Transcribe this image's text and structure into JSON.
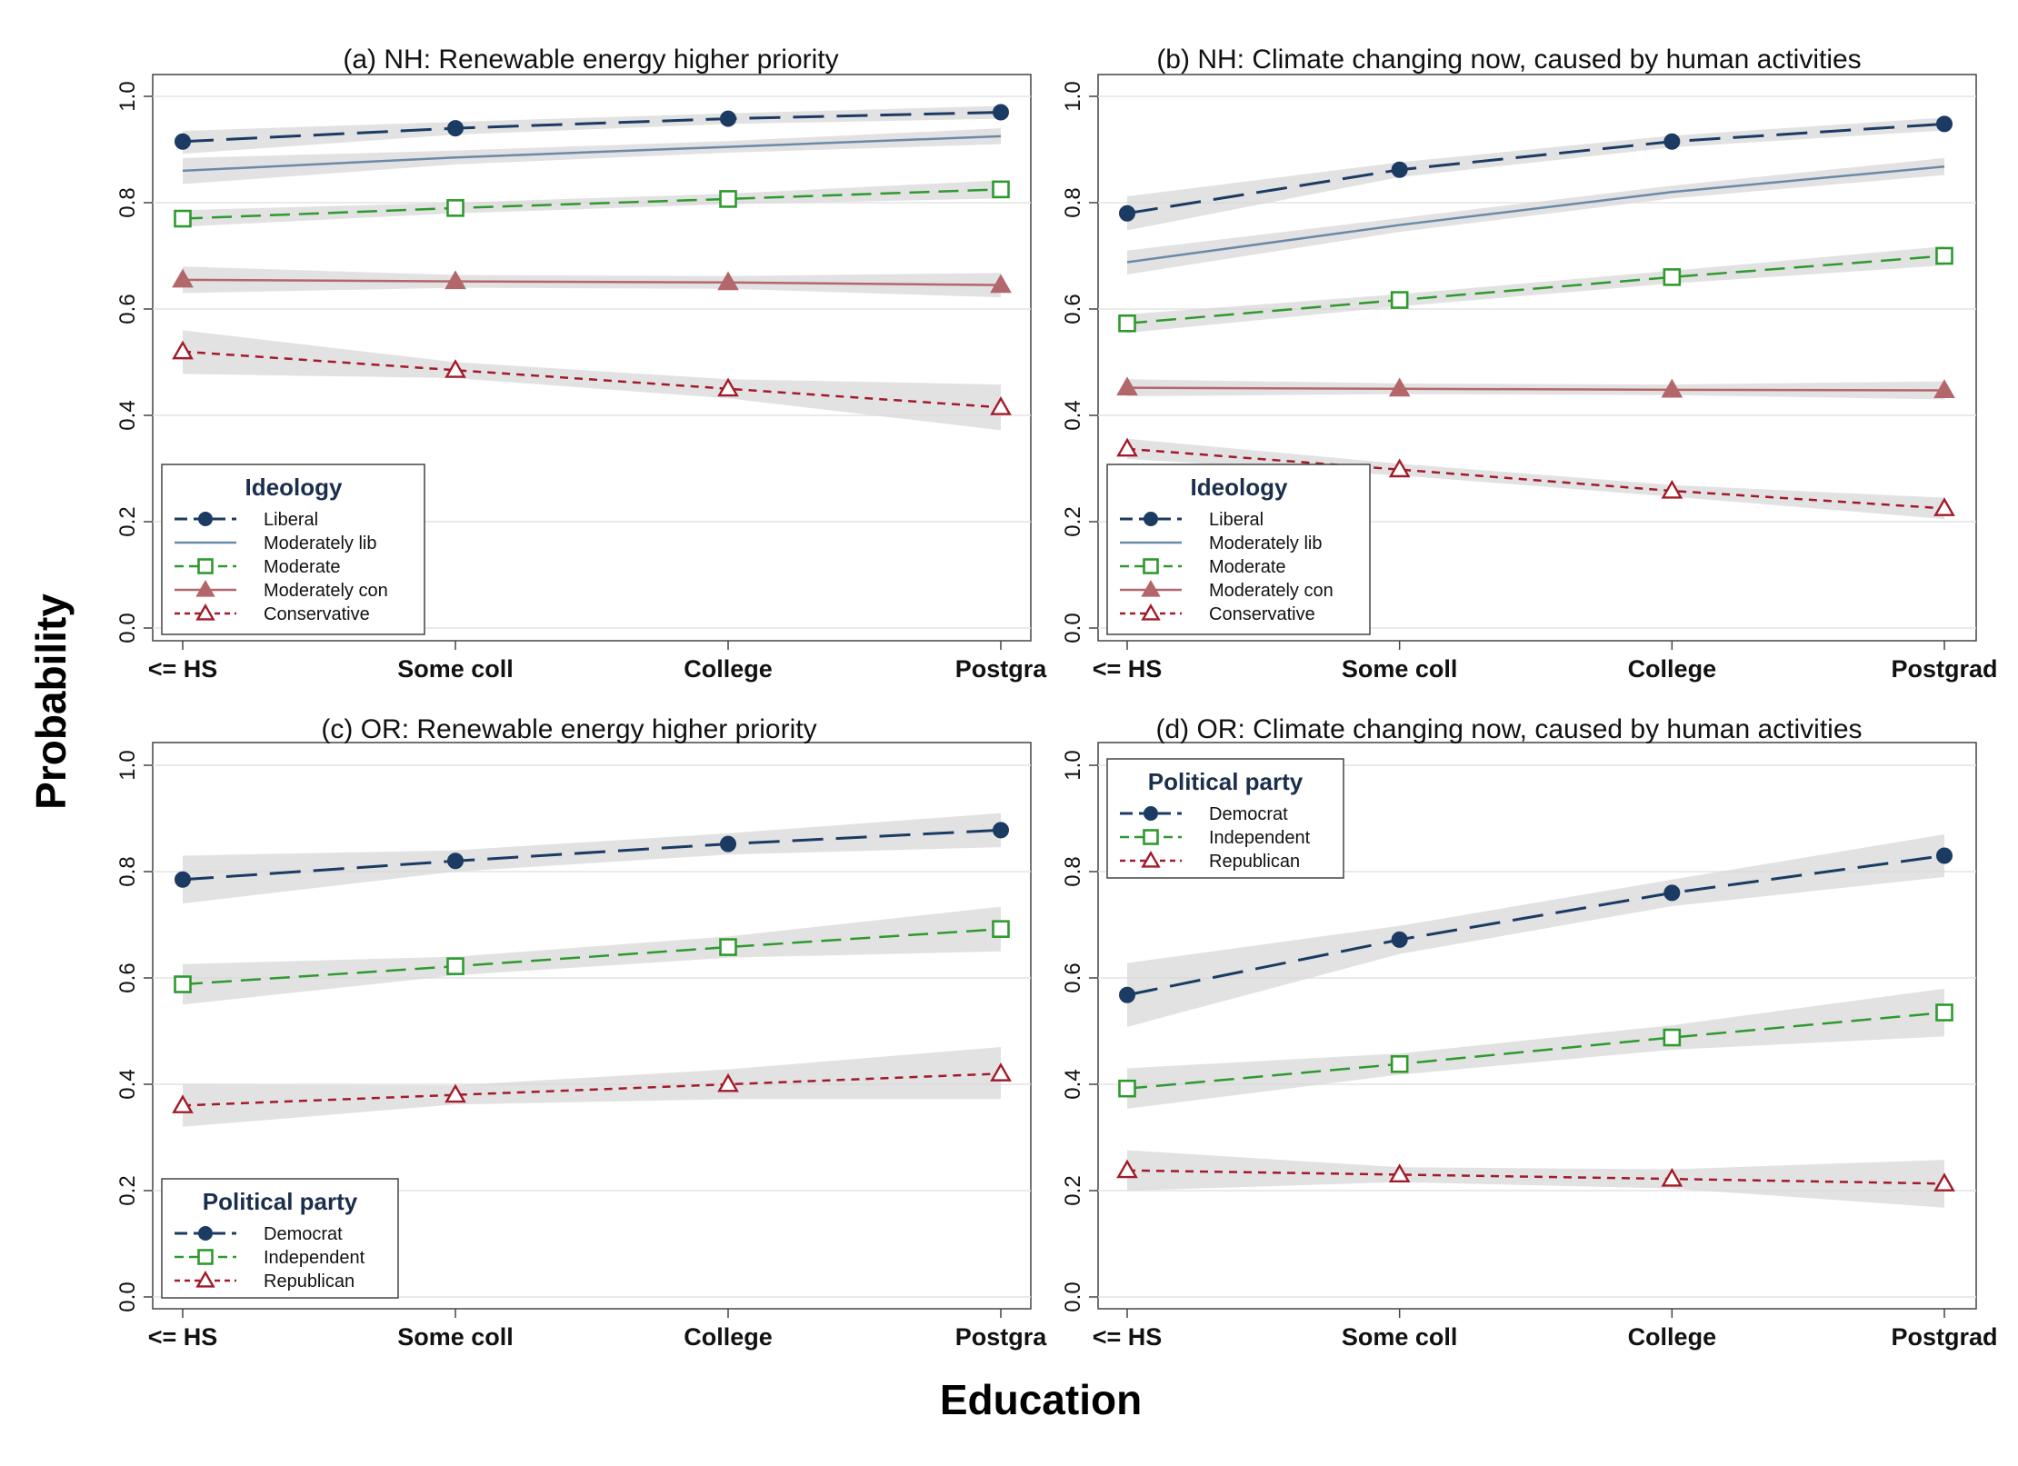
{
  "figure": {
    "ylabel": "Probability",
    "xlabel": "Education"
  },
  "colors": {
    "liberal": "#1b3b63",
    "mod_lib": "#6a8aa8",
    "moderate": "#2e9a2e",
    "mod_con": "#b3676b",
    "conservative": "#a31b2b",
    "band": "#d6d6d6",
    "grid": "#e4e4e4",
    "axis": "#444444"
  },
  "chart_data": [
    {
      "type": "line",
      "title": "(a)  NH:  Renewable energy higher priority",
      "categories": [
        "<= HS",
        "Some coll",
        "College",
        "Postgra"
      ],
      "ylim": [
        0,
        1
      ],
      "yticks": [
        "0.0",
        "0.2",
        "0.4",
        "0.6",
        "0.8",
        "1.0"
      ],
      "grid": true,
      "legend": {
        "title": "Ideology",
        "placement": "bottom-left",
        "entries": [
          "Liberal",
          "Moderately lib",
          "Moderate",
          "Moderately con",
          "Conservative"
        ]
      },
      "series": [
        {
          "name": "Liberal",
          "values": [
            0.915,
            0.94,
            0.958,
            0.97
          ],
          "lower": [
            0.892,
            0.928,
            0.948,
            0.958
          ],
          "upper": [
            0.935,
            0.952,
            0.968,
            0.982
          ],
          "style": "liberal"
        },
        {
          "name": "Moderately lib",
          "values": [
            0.86,
            0.885,
            0.905,
            0.925
          ],
          "lower": [
            0.835,
            0.872,
            0.894,
            0.91
          ],
          "upper": [
            0.884,
            0.898,
            0.916,
            0.94
          ],
          "style": "mod_lib"
        },
        {
          "name": "Moderate",
          "values": [
            0.77,
            0.79,
            0.807,
            0.825
          ],
          "lower": [
            0.755,
            0.78,
            0.797,
            0.808
          ],
          "upper": [
            0.786,
            0.8,
            0.817,
            0.842
          ],
          "style": "moderate"
        },
        {
          "name": "Moderately con",
          "values": [
            0.655,
            0.652,
            0.65,
            0.645
          ],
          "lower": [
            0.63,
            0.64,
            0.638,
            0.622
          ],
          "upper": [
            0.68,
            0.664,
            0.662,
            0.668
          ],
          "style": "mod_con"
        },
        {
          "name": "Conservative",
          "values": [
            0.52,
            0.485,
            0.45,
            0.415
          ],
          "lower": [
            0.478,
            0.47,
            0.432,
            0.372
          ],
          "upper": [
            0.56,
            0.5,
            0.468,
            0.458
          ],
          "style": "conservative"
        }
      ]
    },
    {
      "type": "line",
      "title": "(b)  NH:  Climate changing now, caused by human activities",
      "categories": [
        "<= HS",
        "Some coll",
        "College",
        "Postgrad"
      ],
      "ylim": [
        0,
        1
      ],
      "yticks": [
        "0.0",
        "0.2",
        "0.4",
        "0.6",
        "0.8",
        "1.0"
      ],
      "grid": true,
      "legend": {
        "title": "Ideology",
        "placement": "bottom-left",
        "entries": [
          "Liberal",
          "Moderately lib",
          "Moderate",
          "Moderately con",
          "Conservative"
        ]
      },
      "series": [
        {
          "name": "Liberal",
          "values": [
            0.78,
            0.862,
            0.915,
            0.948
          ],
          "lower": [
            0.748,
            0.848,
            0.904,
            0.936
          ],
          "upper": [
            0.812,
            0.876,
            0.926,
            0.96
          ],
          "style": "liberal"
        },
        {
          "name": "Moderately lib",
          "values": [
            0.688,
            0.758,
            0.82,
            0.868
          ],
          "lower": [
            0.665,
            0.745,
            0.808,
            0.852
          ],
          "upper": [
            0.71,
            0.771,
            0.832,
            0.884
          ],
          "style": "mod_lib"
        },
        {
          "name": "Moderate",
          "values": [
            0.573,
            0.617,
            0.66,
            0.7
          ],
          "lower": [
            0.555,
            0.605,
            0.648,
            0.682
          ],
          "upper": [
            0.59,
            0.628,
            0.672,
            0.718
          ],
          "style": "moderate"
        },
        {
          "name": "Moderately con",
          "values": [
            0.452,
            0.45,
            0.448,
            0.447
          ],
          "lower": [
            0.436,
            0.44,
            0.438,
            0.43
          ],
          "upper": [
            0.468,
            0.46,
            0.458,
            0.464
          ],
          "style": "mod_con"
        },
        {
          "name": "Conservative",
          "values": [
            0.337,
            0.298,
            0.258,
            0.225
          ],
          "lower": [
            0.318,
            0.287,
            0.247,
            0.205
          ],
          "upper": [
            0.356,
            0.309,
            0.269,
            0.245
          ],
          "style": "conservative"
        }
      ]
    },
    {
      "type": "line",
      "title": "(c)  OR:  Renewable energy higher priority",
      "categories": [
        "<= HS",
        "Some coll",
        "College",
        "Postgra"
      ],
      "ylim": [
        0,
        1
      ],
      "yticks": [
        "0.0",
        "0.2",
        "0.4",
        "0.6",
        "0.8",
        "1.0"
      ],
      "grid": true,
      "legend": {
        "title": "Political party",
        "placement": "bottom-left",
        "entries": [
          "Democrat",
          "Independent",
          "Republican"
        ]
      },
      "series": [
        {
          "name": "Democrat",
          "values": [
            0.785,
            0.82,
            0.852,
            0.878
          ],
          "lower": [
            0.74,
            0.8,
            0.832,
            0.846
          ],
          "upper": [
            0.83,
            0.84,
            0.872,
            0.91
          ],
          "style": "liberal"
        },
        {
          "name": "Independent",
          "values": [
            0.588,
            0.622,
            0.658,
            0.692
          ],
          "lower": [
            0.55,
            0.605,
            0.638,
            0.65
          ],
          "upper": [
            0.626,
            0.64,
            0.678,
            0.734
          ],
          "style": "moderate"
        },
        {
          "name": "Republican",
          "values": [
            0.36,
            0.38,
            0.4,
            0.42
          ],
          "lower": [
            0.32,
            0.362,
            0.372,
            0.372
          ],
          "upper": [
            0.4,
            0.398,
            0.428,
            0.47
          ],
          "style": "conservative"
        }
      ]
    },
    {
      "type": "line",
      "title": "(d)  OR:  Climate changing now, caused by human activities",
      "categories": [
        "<= HS",
        "Some coll",
        "College",
        "Postgrad"
      ],
      "ylim": [
        0,
        1
      ],
      "yticks": [
        "0.0",
        "0.2",
        "0.4",
        "0.6",
        "0.8",
        "1.0"
      ],
      "grid": true,
      "legend": {
        "title": "Political party",
        "placement": "top-left",
        "entries": [
          "Democrat",
          "Independent",
          "Republican"
        ]
      },
      "series": [
        {
          "name": "Democrat",
          "values": [
            0.568,
            0.672,
            0.76,
            0.83
          ],
          "lower": [
            0.508,
            0.645,
            0.735,
            0.79
          ],
          "upper": [
            0.628,
            0.698,
            0.785,
            0.87
          ],
          "style": "liberal"
        },
        {
          "name": "Independent",
          "values": [
            0.392,
            0.438,
            0.488,
            0.535
          ],
          "lower": [
            0.354,
            0.418,
            0.465,
            0.49
          ],
          "upper": [
            0.43,
            0.458,
            0.511,
            0.58
          ],
          "style": "moderate"
        },
        {
          "name": "Republican",
          "values": [
            0.238,
            0.23,
            0.222,
            0.213
          ],
          "lower": [
            0.2,
            0.216,
            0.204,
            0.168
          ],
          "upper": [
            0.276,
            0.244,
            0.24,
            0.258
          ],
          "style": "conservative"
        }
      ]
    }
  ]
}
